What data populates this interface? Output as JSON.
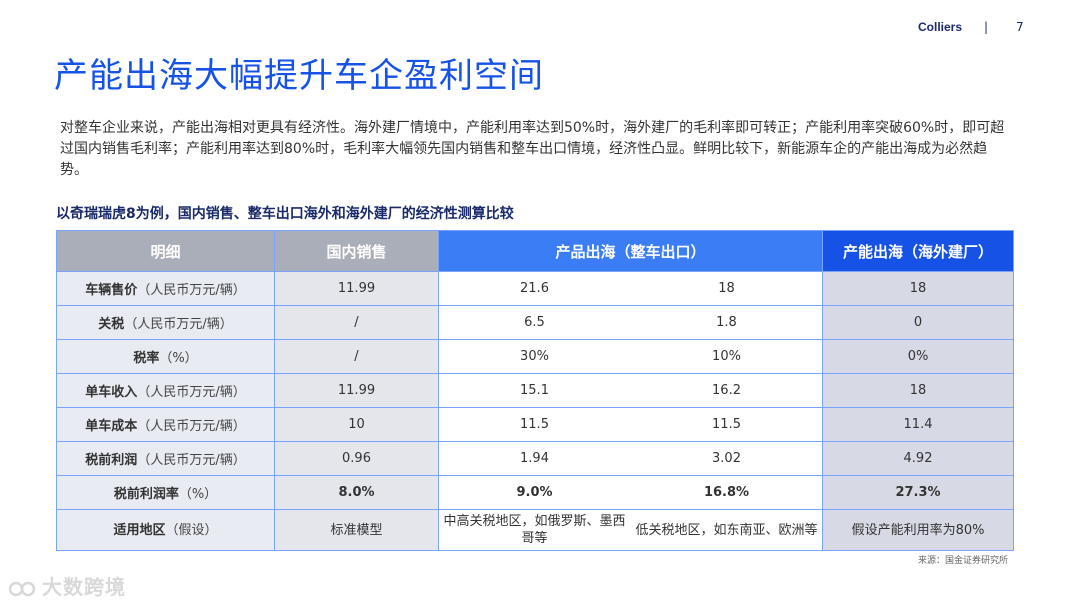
{
  "header": {
    "brand": "Colliers",
    "separator": "|",
    "page_number": "7"
  },
  "title": "产能出海大幅提升车企盈利空间",
  "intro": "对整车企业来说，产能出海相对更具有经济性。海外建厂情境中，产能利用率达到50%时，海外建厂的毛利率即可转正；产能利用率突破60%时，即可超过国内销售毛利率；产能利用率达到80%时，毛利率大幅领先国内销售和整车出口情境，经济性凸显。鲜明比较下，新能源车企的产能出海成为必然趋势。",
  "table_title": "以奇瑞瑞虎8为例，国内销售、整车出口海外和海外建厂的经济性测算比较",
  "table": {
    "headers": [
      "明细",
      "国内销售",
      "产品出海（整车出口）",
      "产能出海（海外建厂）"
    ],
    "rows": [
      {
        "label": "车辆售价",
        "unit": "（人民币万元/辆）",
        "domestic": "11.99",
        "export_a": "21.6",
        "export_b": "18",
        "overseas": "18"
      },
      {
        "label": "关税",
        "unit": "（人民币万元/辆）",
        "domestic": "/",
        "export_a": "6.5",
        "export_b": "1.8",
        "overseas": "0"
      },
      {
        "label": "税率",
        "unit": "（%）",
        "domestic": "/",
        "export_a": "30%",
        "export_b": "10%",
        "overseas": "0%"
      },
      {
        "label": "单车收入",
        "unit": "（人民币万元/辆）",
        "domestic": "11.99",
        "export_a": "15.1",
        "export_b": "16.2",
        "overseas": "18"
      },
      {
        "label": "单车成本",
        "unit": "（人民币万元/辆）",
        "domestic": "10",
        "export_a": "11.5",
        "export_b": "11.5",
        "overseas": "11.4"
      },
      {
        "label": "税前利润",
        "unit": "（人民币万元/辆）",
        "domestic": "0.96",
        "export_a": "1.94",
        "export_b": "3.02",
        "overseas": "4.92"
      },
      {
        "label": "税前利润率",
        "unit": "（%）",
        "domestic": "8.0%",
        "export_a": "9.0%",
        "export_b": "16.8%",
        "overseas": "27.3%"
      },
      {
        "label": "适用地区",
        "unit": "（假设）",
        "domestic": "标准模型",
        "export_a": "中高关税地区，如俄罗斯、墨西哥等",
        "export_b": "低关税地区，如东南亚、欧洲等",
        "overseas": "假设产能利用率为80%"
      }
    ]
  },
  "source": "来源：国金证券研究所",
  "watermark": "大数跨境"
}
